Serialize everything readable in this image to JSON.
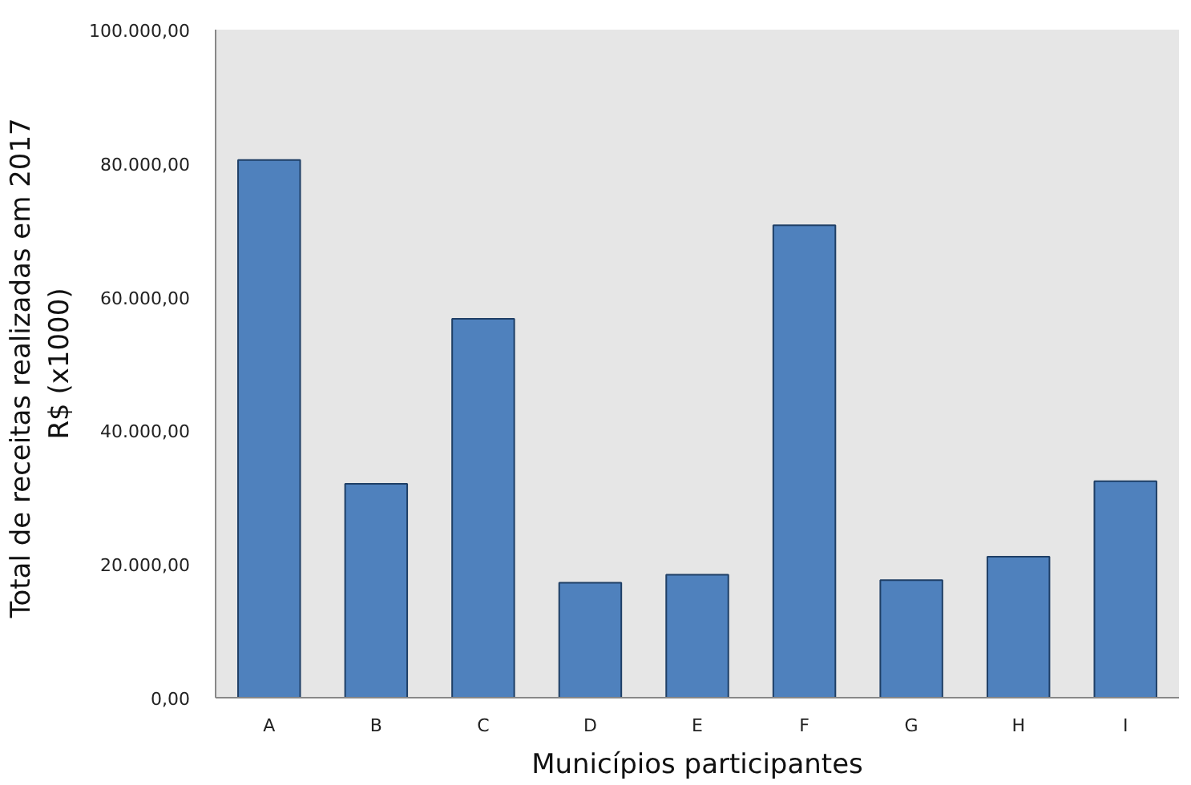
{
  "chart_data": {
    "type": "bar",
    "xlabel": "Municípios participantes",
    "ylabel": "Total de receitas realizadas  em 2017\nR$ (x1000)",
    "categories": [
      "A",
      "B",
      "C",
      "D",
      "E",
      "F",
      "G",
      "H",
      "I"
    ],
    "values": [
      80500,
      32000,
      56700,
      17200,
      18400,
      70700,
      17600,
      21100,
      32400
    ],
    "color": "#4f81bd",
    "ylim": [
      0,
      100000
    ],
    "yticks": [
      {
        "value": 0,
        "label": "0,00"
      },
      {
        "value": 20000,
        "label": "20.000,00"
      },
      {
        "value": 40000,
        "label": "40.000,00"
      },
      {
        "value": 60000,
        "label": "60.000,00"
      },
      {
        "value": 80000,
        "label": "80.000,00"
      },
      {
        "value": 100000,
        "label": "100.000,00"
      }
    ],
    "grid": false
  }
}
